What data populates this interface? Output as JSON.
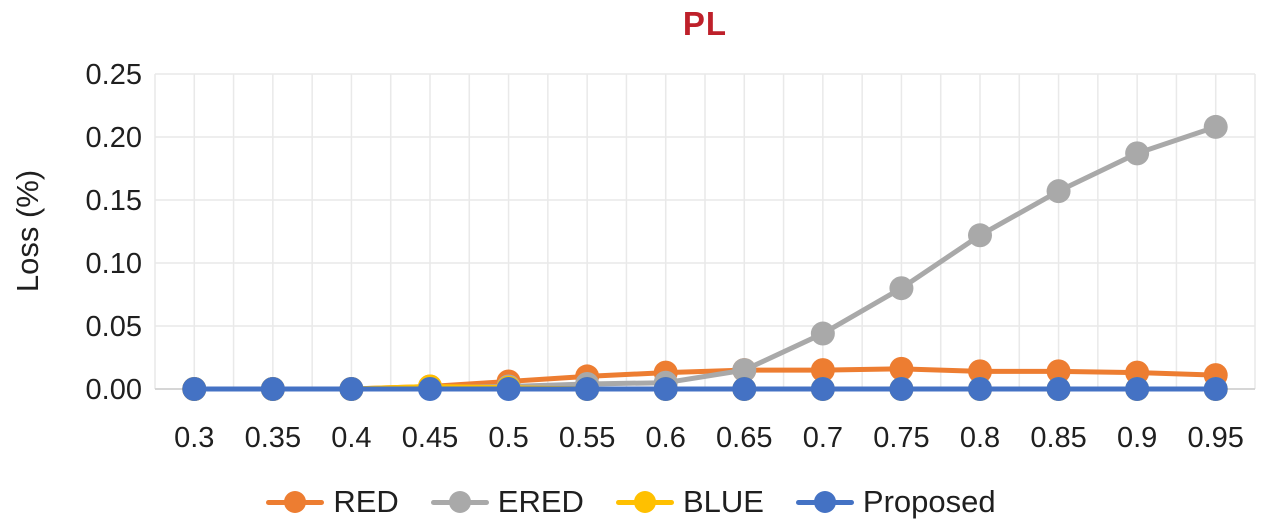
{
  "chart_data": {
    "type": "line",
    "title": "PL",
    "title_color": "#be202a",
    "xlabel": "",
    "ylabel": "Loss (%)",
    "x_labels": [
      "0.3",
      "0.35",
      "0.4",
      "0.45",
      "0.5",
      "0.55",
      "0.6",
      "0.65",
      "0.7",
      "0.75",
      "0.8",
      "0.85",
      "0.9",
      "0.95"
    ],
    "y_ticks": [
      "0.00",
      "0.05",
      "0.10",
      "0.15",
      "0.20",
      "0.25"
    ],
    "ylim": [
      0,
      0.25
    ],
    "grid": true,
    "legend_position": "bottom",
    "series": [
      {
        "name": "RED",
        "color": "#ed7d31",
        "values": [
          0,
          0,
          0,
          0.002,
          0.006,
          0.01,
          0.013,
          0.015,
          0.015,
          0.016,
          0.014,
          0.014,
          0.013,
          0.011
        ]
      },
      {
        "name": "ERED",
        "color": "#a9a9a9",
        "values": [
          0,
          0,
          0,
          0.001,
          0.002,
          0.004,
          0.005,
          0.015,
          0.044,
          0.08,
          0.122,
          0.157,
          0.187,
          0.208
        ]
      },
      {
        "name": "BLUE",
        "color": "#ffc000",
        "values": [
          0,
          0,
          0,
          0.002,
          0.001,
          0,
          0,
          0,
          0,
          0,
          0,
          0,
          0,
          0
        ]
      },
      {
        "name": "Proposed",
        "color": "#4472c4",
        "values": [
          0,
          0,
          0,
          0,
          0,
          0,
          0,
          0,
          0,
          0,
          0,
          0,
          0,
          0
        ]
      }
    ],
    "axis_text_color": "#1f1f1f",
    "grid_color": "#e9e9e9",
    "axis_line_color": "#d2d2d2",
    "background": "#ffffff"
  }
}
